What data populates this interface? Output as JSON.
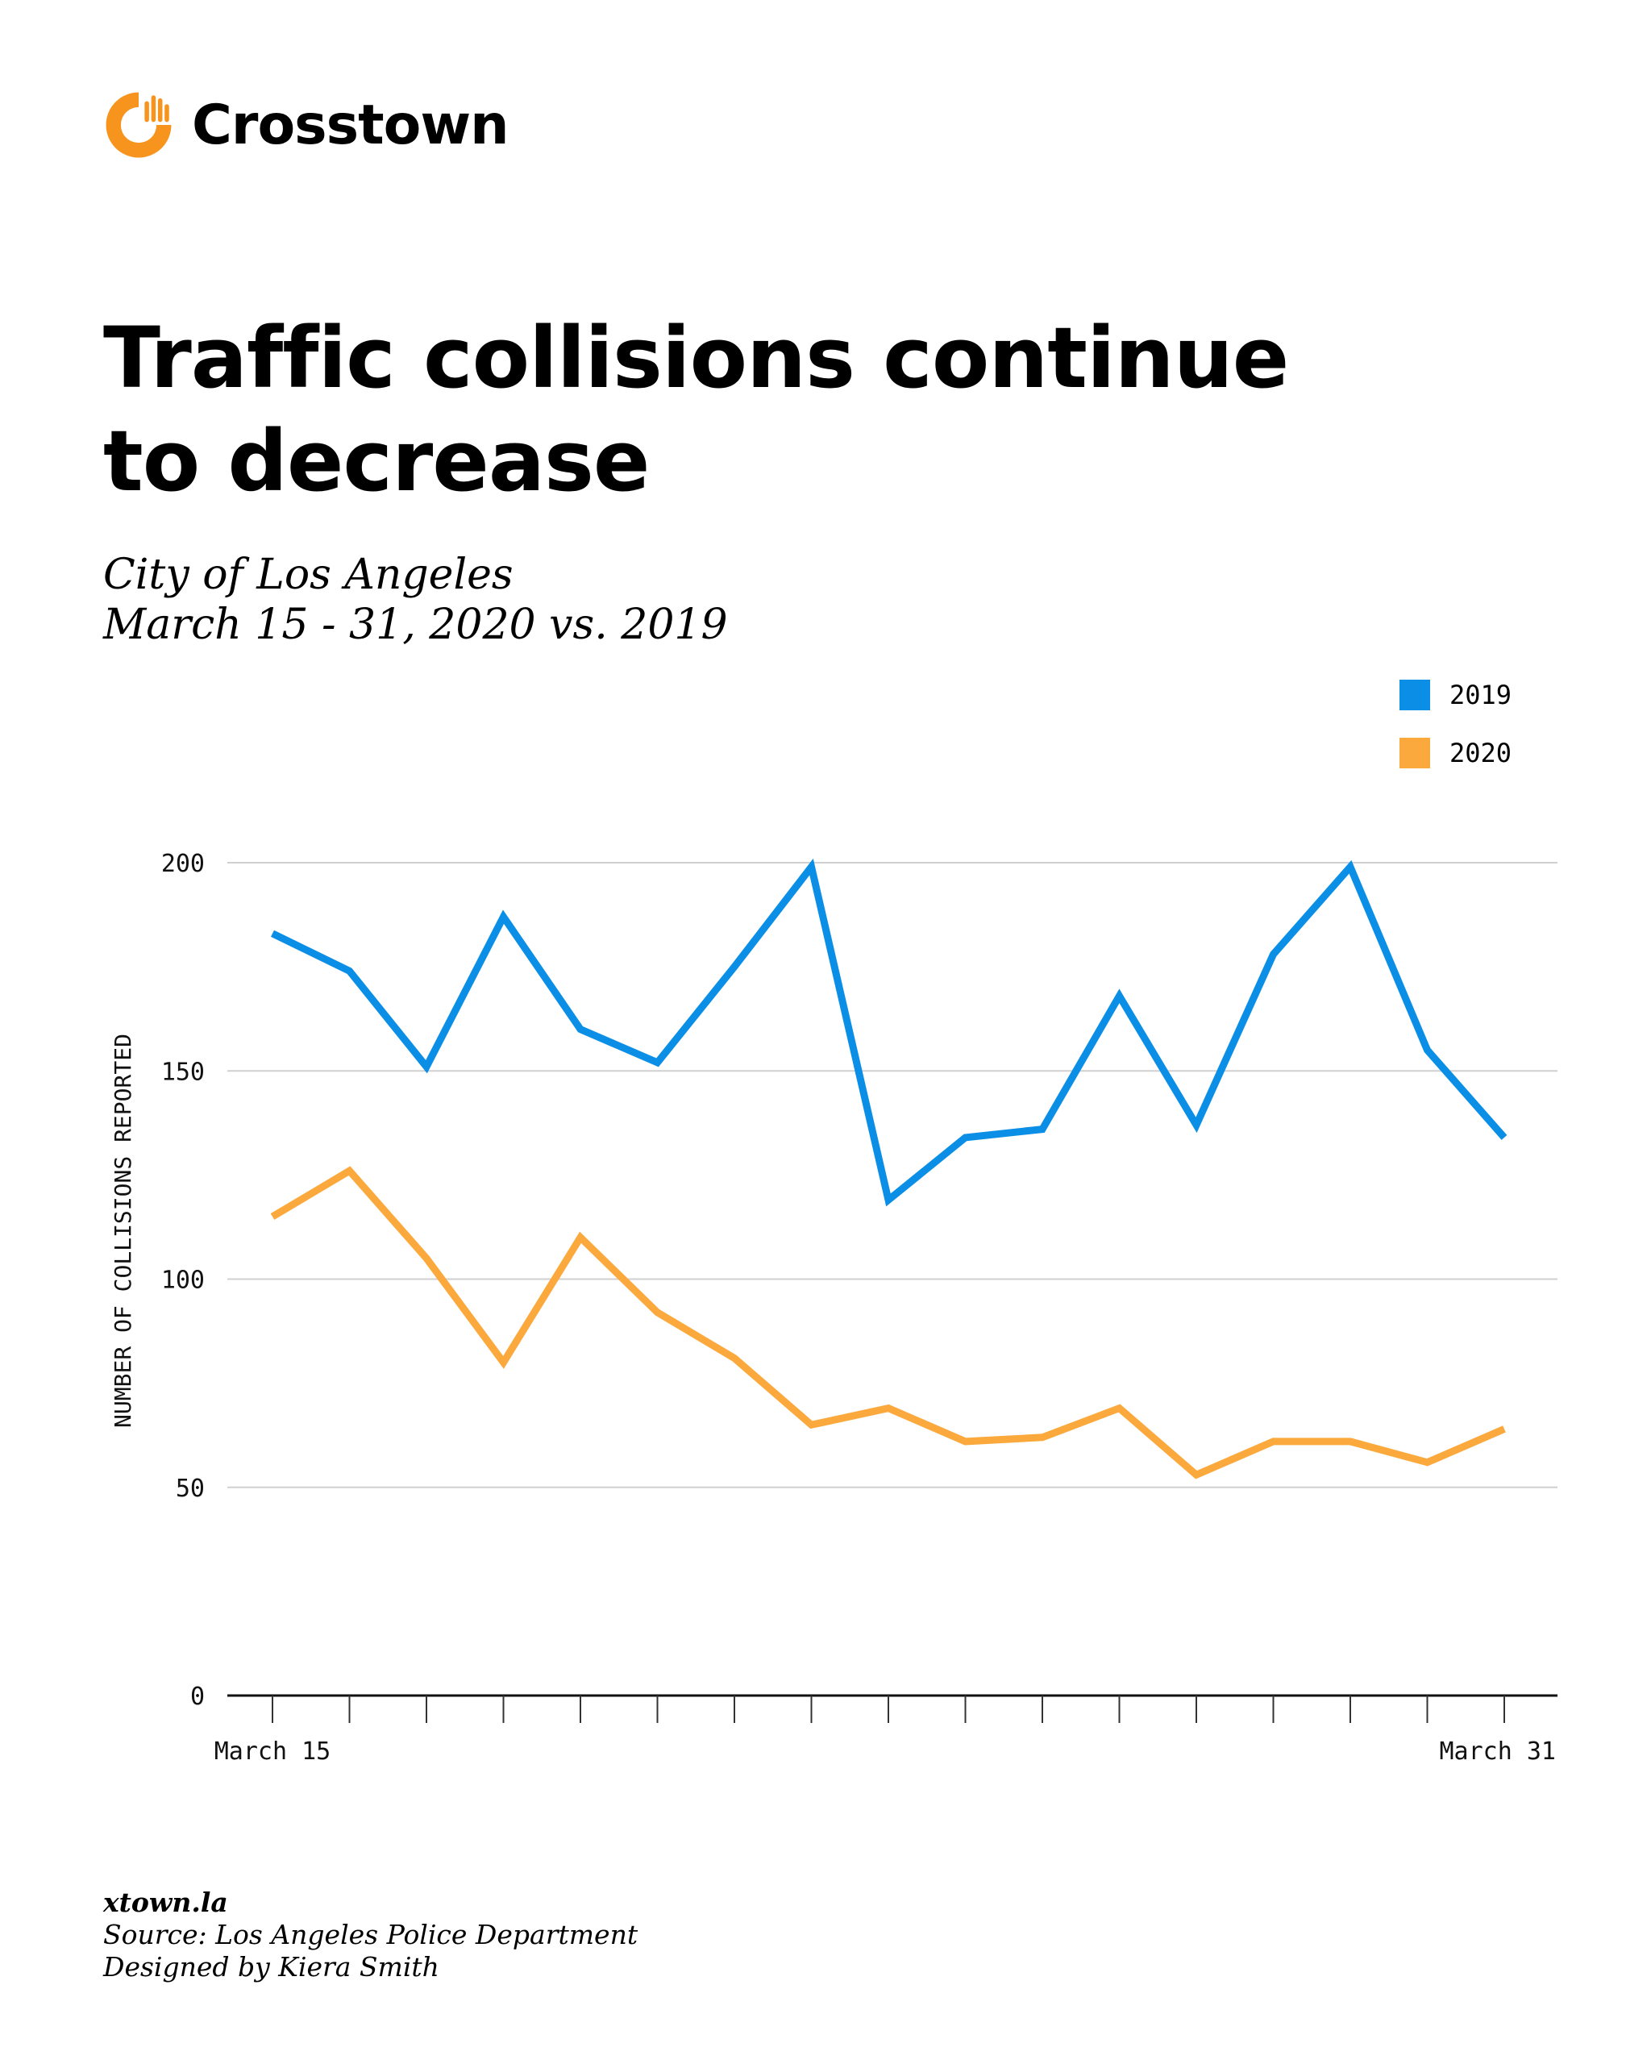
{
  "brand": {
    "name": "Crosstown",
    "colors": {
      "accent": "#F7941D"
    },
    "icon": "crosstown-hand-logo-icon"
  },
  "header": {
    "title_line1": "Traffic collisions continue",
    "title_line2": "to decrease",
    "subtitle_line1": "City of Los Angeles",
    "subtitle_line2": "March 15 - 31, 2020 vs. 2019"
  },
  "footer": {
    "site": "xtown.la",
    "source": "Source: Los Angeles Police Department",
    "credit": "Designed by Kiera Smith"
  },
  "chart_data": {
    "type": "line",
    "ylabel": "NUMBER OF COLLISIONS REPORTED",
    "xlabel": "",
    "ylim": [
      0,
      200
    ],
    "yticks": [
      0,
      50,
      100,
      150,
      200
    ],
    "x_first_label": "March 15",
    "x_last_label": "March 31",
    "x_dates": [
      "March 15",
      "March 16",
      "March 17",
      "March 18",
      "March 19",
      "March 20",
      "March 21",
      "March 22",
      "March 23",
      "March 24",
      "March 25",
      "March 26",
      "March 27",
      "March 28",
      "March 29",
      "March 30",
      "March 31"
    ],
    "grid": true,
    "legend_position": "top-right",
    "series": [
      {
        "name": "2019",
        "color": "#0B8FE6",
        "values": [
          183,
          174,
          151,
          187,
          160,
          152,
          175,
          199,
          119,
          134,
          136,
          168,
          137,
          178,
          199,
          155,
          134
        ]
      },
      {
        "name": "2020",
        "color": "#FBA93C",
        "values": [
          115,
          126,
          105,
          80,
          110,
          92,
          81,
          65,
          69,
          61,
          62,
          69,
          53,
          61,
          61,
          56,
          64
        ]
      }
    ]
  }
}
